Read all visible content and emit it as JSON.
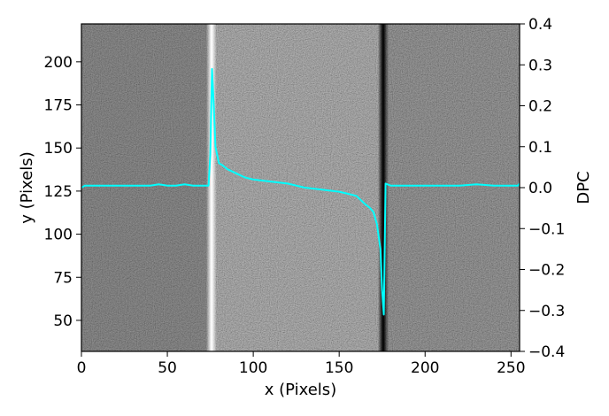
{
  "chart_data": {
    "type": "line",
    "xlabel": "x (Pixels)",
    "ylabel_left": "y (Pixels)",
    "ylabel_right": "DPC",
    "xlim": [
      0,
      255
    ],
    "ylim_left": [
      32,
      222
    ],
    "ylim_right": [
      -0.4,
      0.4
    ],
    "x_ticks": [
      0,
      50,
      100,
      150,
      200,
      250
    ],
    "y_left_ticks": [
      50,
      75,
      100,
      125,
      150,
      175,
      200
    ],
    "y_right_ticks": [
      -0.4,
      -0.3,
      -0.2,
      -0.1,
      0.0,
      0.1,
      0.2,
      0.3,
      0.4
    ],
    "x_tick_labels": [
      "0",
      "50",
      "100",
      "150",
      "200",
      "250"
    ],
    "y_left_tick_labels": [
      "50",
      "75",
      "100",
      "125",
      "150",
      "175",
      "200"
    ],
    "y_right_tick_labels": [
      "−0.4",
      "−0.3",
      "−0.2",
      "−0.1",
      "0.0",
      "0.1",
      "0.2",
      "0.3",
      "0.4"
    ],
    "background": "grayscale noisy image with a bright vertical stripe near x≈75 and a dark vertical stripe near x≈176",
    "series": [
      {
        "color": "#00ffff",
        "axis": "right",
        "x": [
          0,
          2,
          5,
          10,
          15,
          20,
          25,
          30,
          35,
          40,
          45,
          50,
          55,
          60,
          65,
          70,
          74,
          75,
          76,
          77,
          78,
          80,
          82,
          85,
          90,
          95,
          100,
          110,
          120,
          130,
          140,
          150,
          155,
          160,
          165,
          168,
          170,
          172,
          174,
          175,
          176,
          177,
          180,
          190,
          200,
          210,
          220,
          230,
          240,
          250,
          254,
          255
        ],
        "y": [
          0.0,
          0.005,
          0.005,
          0.005,
          0.005,
          0.005,
          0.005,
          0.005,
          0.005,
          0.005,
          0.008,
          0.005,
          0.005,
          0.008,
          0.005,
          0.005,
          0.005,
          0.08,
          0.29,
          0.2,
          0.1,
          0.06,
          0.055,
          0.045,
          0.035,
          0.025,
          0.02,
          0.015,
          0.01,
          0.0,
          -0.005,
          -0.01,
          -0.015,
          -0.02,
          -0.04,
          -0.05,
          -0.06,
          -0.09,
          -0.15,
          -0.25,
          -0.31,
          0.01,
          0.005,
          0.005,
          0.005,
          0.005,
          0.005,
          0.008,
          0.005,
          0.005,
          0.005,
          0.01
        ]
      }
    ]
  }
}
